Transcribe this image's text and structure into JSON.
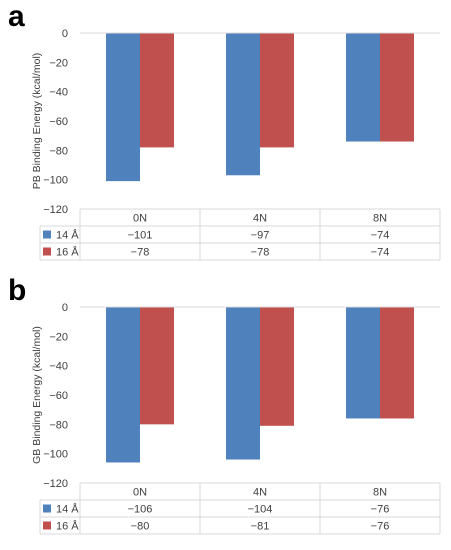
{
  "chart_data": [
    {
      "panel_label": "a",
      "type": "bar",
      "ylabel": "PB Binding Energy (kcal/mol)",
      "ylim": [
        -120,
        0
      ],
      "yticks": [
        "0",
        "−20",
        "−40",
        "−60",
        "−80",
        "−100",
        "−120"
      ],
      "ytick_values": [
        0,
        -20,
        -40,
        -60,
        -80,
        -100,
        -120
      ],
      "categories": [
        "0N",
        "4N",
        "8N"
      ],
      "series": [
        {
          "name": "14 Å",
          "color": "#4f81bd",
          "values": [
            -101,
            -97,
            -74
          ],
          "labels": [
            "−101",
            "−97",
            "−74"
          ]
        },
        {
          "name": "16 Å",
          "color": "#c0504d",
          "values": [
            -78,
            -78,
            -74
          ],
          "labels": [
            "−78",
            "−78",
            "−74"
          ]
        }
      ],
      "grid": false,
      "data_table": true
    },
    {
      "panel_label": "b",
      "type": "bar",
      "ylabel": "GB Binding Energy (kcal/mol)",
      "ylim": [
        -120,
        0
      ],
      "yticks": [
        "0",
        "−20",
        "−40",
        "−60",
        "−80",
        "−100",
        "−120"
      ],
      "ytick_values": [
        0,
        -20,
        -40,
        -60,
        -80,
        -100,
        -120
      ],
      "categories": [
        "0N",
        "4N",
        "8N"
      ],
      "series": [
        {
          "name": "14 Å",
          "color": "#4f81bd",
          "values": [
            -106,
            -104,
            -76
          ],
          "labels": [
            "−106",
            "−104",
            "−76"
          ]
        },
        {
          "name": "16 Å",
          "color": "#c0504d",
          "values": [
            -80,
            -81,
            -76
          ],
          "labels": [
            "−80",
            "−81",
            "−76"
          ]
        }
      ],
      "grid": false,
      "data_table": true
    }
  ]
}
